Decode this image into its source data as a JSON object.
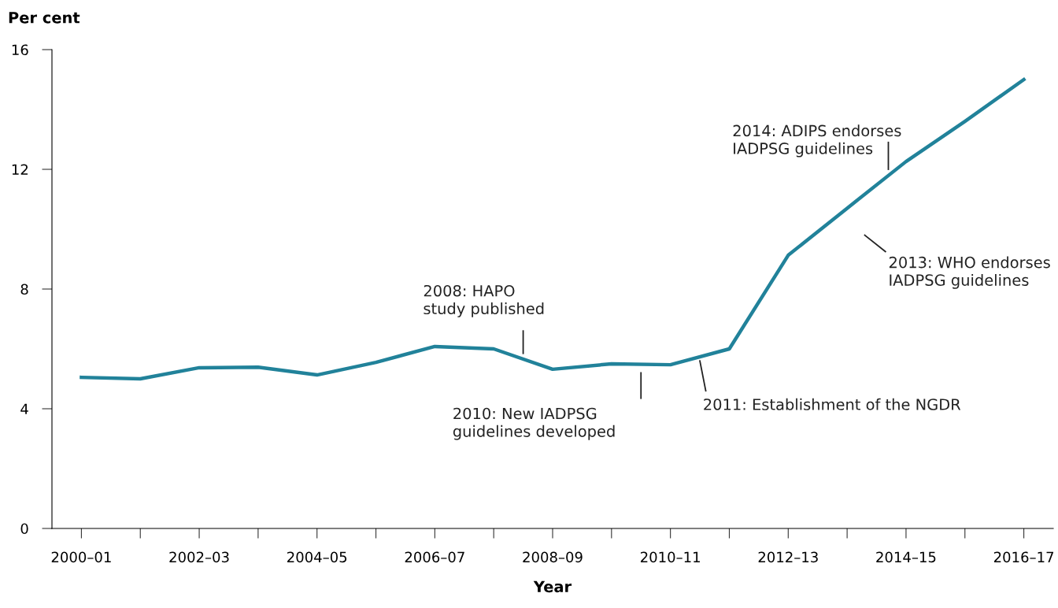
{
  "chart_data": {
    "type": "line",
    "xlabel": "Year",
    "ylabel": "Per cent",
    "categories": [
      "2000–01",
      null,
      "2002–03",
      null,
      "2004–05",
      null,
      "2006–07",
      null,
      "2008–09",
      null,
      "2010–11",
      null,
      "2012–13",
      null,
      "2014–15",
      null,
      "2016–17"
    ],
    "series": [
      {
        "color": "#21829a",
        "values": [
          5.05,
          5.0,
          5.37,
          5.39,
          5.13,
          5.55,
          6.08,
          6.0,
          5.32,
          5.5,
          5.47,
          6.0,
          9.13,
          10.7,
          12.26,
          13.6,
          15.0
        ]
      }
    ],
    "ylim": [
      0,
      16
    ],
    "yticks": [
      0,
      4,
      8,
      12,
      16
    ],
    "grid": false,
    "marker": "none",
    "line_style": "solid",
    "annotations": [
      "2008: HAPO\nstudy published",
      "2010: New IADPSG\nguidelines developed",
      "2011: Establishment of the NGDR",
      "2013: WHO endorses\nIADPSG guidelines",
      "2014: ADIPS endorses\nIADPSG guidelines"
    ]
  }
}
